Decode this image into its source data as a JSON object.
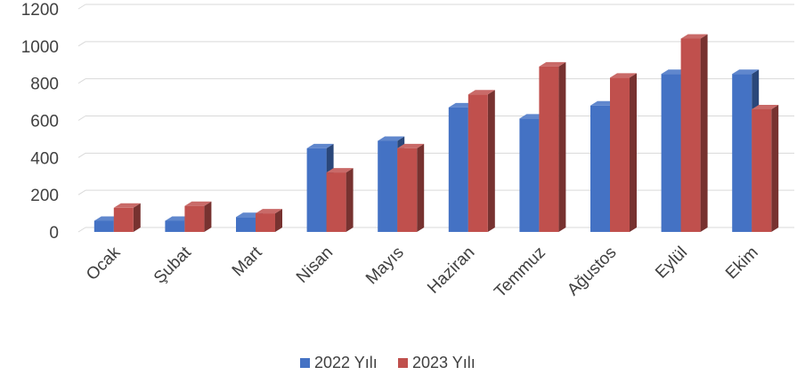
{
  "chart_data": {
    "type": "bar",
    "title": "",
    "xlabel": "",
    "ylabel": "",
    "ylim": [
      0,
      1200
    ],
    "yticks": [
      0,
      200,
      400,
      600,
      800,
      1000,
      1200
    ],
    "grid": true,
    "legend_position": "bottom",
    "categories": [
      "Ocak",
      "Şubat",
      "Mart",
      "Nisan",
      "Mayıs",
      "Haziran",
      "Temmuz",
      "Ağustos",
      "Eylül",
      "Ekim"
    ],
    "series": [
      {
        "name": "2022 Yılı",
        "color": "#4472C4",
        "values": [
          60,
          60,
          80,
          450,
          490,
          670,
          610,
          680,
          850,
          850
        ]
      },
      {
        "name": "2023 Yılı",
        "color": "#C0504D",
        "values": [
          130,
          140,
          100,
          320,
          450,
          740,
          890,
          830,
          1040,
          660
        ]
      }
    ]
  }
}
